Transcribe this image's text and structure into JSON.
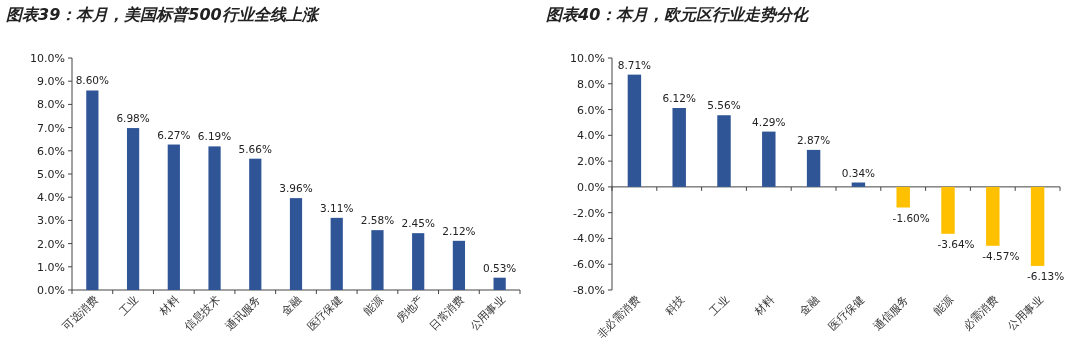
{
  "chart_data": [
    {
      "type": "bar",
      "title": "图表39：本月，美国标普500行业全线上涨",
      "categories": [
        "可选消费",
        "工业",
        "材料",
        "信息技术",
        "通讯服务",
        "金融",
        "医疗保健",
        "能源",
        "房地产",
        "日常消费",
        "公用事业"
      ],
      "values": [
        8.6,
        6.98,
        6.27,
        6.19,
        5.66,
        3.96,
        3.11,
        2.58,
        2.45,
        2.12,
        0.53
      ],
      "colors": [
        "#2f5597",
        "#2f5597",
        "#2f5597",
        "#2f5597",
        "#2f5597",
        "#2f5597",
        "#2f5597",
        "#2f5597",
        "#2f5597",
        "#2f5597",
        "#2f5597"
      ],
      "value_labels": [
        "8.60%",
        "6.98%",
        "6.27%",
        "6.19%",
        "5.66%",
        "3.96%",
        "3.11%",
        "2.58%",
        "2.45%",
        "2.12%",
        "0.53%"
      ],
      "ylim": [
        0,
        10
      ],
      "yticks": [
        {
          "value": 0,
          "label": "0.0%"
        },
        {
          "value": 1,
          "label": "1.0%"
        },
        {
          "value": 2,
          "label": "2.0%"
        },
        {
          "value": 3,
          "label": "3.0%"
        },
        {
          "value": 4,
          "label": "4.0%"
        },
        {
          "value": 5,
          "label": "5.0%"
        },
        {
          "value": 6,
          "label": "6.0%"
        },
        {
          "value": 7,
          "label": "7.0%"
        },
        {
          "value": 8,
          "label": "8.0%"
        },
        {
          "value": 9,
          "label": "9.0%"
        },
        {
          "value": 10,
          "label": "10.0%"
        }
      ]
    },
    {
      "type": "bar",
      "title": "图表40：本月，欧元区行业走势分化",
      "categories": [
        "非必需消费",
        "科技",
        "工业",
        "材料",
        "金融",
        "医疗保健",
        "通信服务",
        "能源",
        "必需消费",
        "公用事业"
      ],
      "values": [
        8.71,
        6.12,
        5.56,
        4.29,
        2.87,
        0.34,
        -1.6,
        -3.64,
        -4.57,
        -6.13
      ],
      "colors": [
        "#2f5597",
        "#2f5597",
        "#2f5597",
        "#2f5597",
        "#2f5597",
        "#2f5597",
        "#ffc000",
        "#ffc000",
        "#ffc000",
        "#ffc000"
      ],
      "value_labels": [
        "8.71%",
        "6.12%",
        "5.56%",
        "4.29%",
        "2.87%",
        "0.34%",
        "-1.60%",
        "-3.64%",
        "-4.57%",
        "-6.13%"
      ],
      "ylim": [
        -8,
        10
      ],
      "yticks": [
        {
          "value": -8,
          "label": "-8.0%"
        },
        {
          "value": -6,
          "label": "-6.0%"
        },
        {
          "value": -4,
          "label": "-4.0%"
        },
        {
          "value": -2,
          "label": "-2.0%"
        },
        {
          "value": 0,
          "label": "0.0%"
        },
        {
          "value": 2,
          "label": "2.0%"
        },
        {
          "value": 4,
          "label": "4.0%"
        },
        {
          "value": 6,
          "label": "6.0%"
        },
        {
          "value": 8,
          "label": "8.0%"
        },
        {
          "value": 10,
          "label": "10.0%"
        }
      ]
    }
  ]
}
